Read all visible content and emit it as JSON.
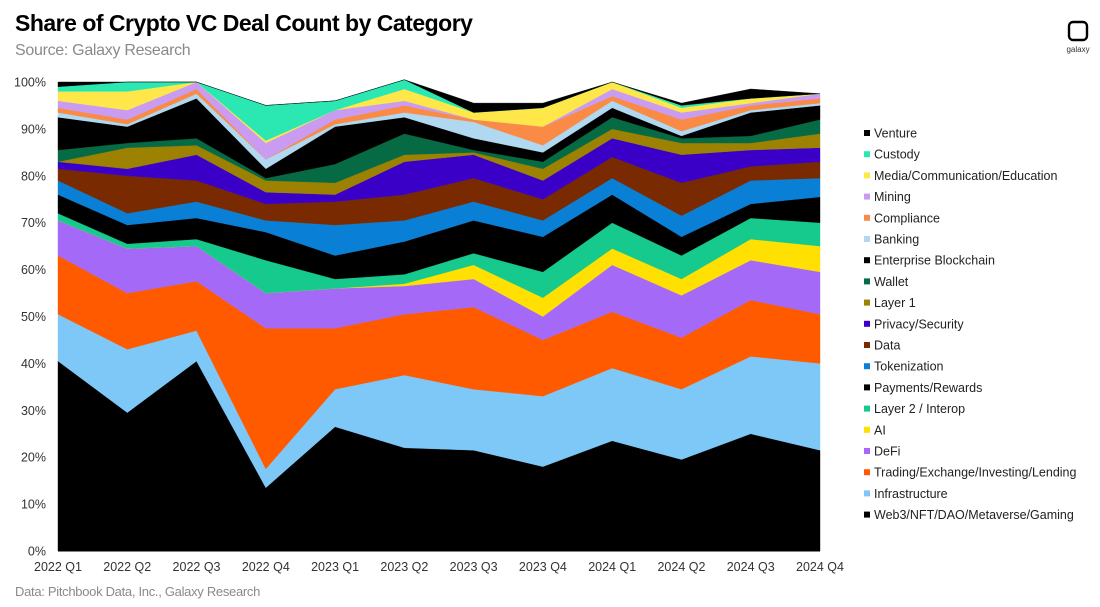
{
  "header": {
    "title": "Share of Crypto VC Deal Count by Category",
    "subtitle": "Source: Galaxy Research"
  },
  "footer": {
    "text": "Data: Pitchbook Data, Inc., Galaxy Research"
  },
  "logo": {
    "text": "galaxy",
    "icon": "galaxy-logo-icon"
  },
  "chart_data": {
    "type": "area",
    "stacked": true,
    "x": [
      "2022 Q1",
      "2022 Q2",
      "2022 Q3",
      "2022 Q4",
      "2023 Q1",
      "2023 Q2",
      "2023 Q3",
      "2023 Q4",
      "2024 Q1",
      "2024 Q2",
      "2024 Q3",
      "2024 Q4"
    ],
    "ylim": [
      0,
      100
    ],
    "yticks": [
      "0%",
      "10%",
      "20%",
      "30%",
      "40%",
      "50%",
      "60%",
      "70%",
      "80%",
      "90%",
      "100%"
    ],
    "legend_position": "right",
    "grid": false,
    "series": [
      {
        "name": "Web3/NFT/DAO/Metaverse/Gaming",
        "color": "#000000",
        "values": [
          40.5,
          29.5,
          40.5,
          13.5,
          26.5,
          22,
          21.5,
          18,
          23.5,
          19.5,
          25,
          21.5
        ]
      },
      {
        "name": "Infrastructure",
        "color": "#7ec8f8",
        "values": [
          10,
          13.5,
          6.5,
          4,
          8,
          15.5,
          13,
          15,
          15.5,
          15,
          16.5,
          18.5
        ]
      },
      {
        "name": "Trading/Exchange/Investing/Lending",
        "color": "#ff5a00",
        "values": [
          12.5,
          12,
          10.5,
          30,
          13,
          13,
          17.5,
          12,
          12,
          11,
          12,
          10.5
        ]
      },
      {
        "name": "DeFi",
        "color": "#a46af7",
        "values": [
          7.5,
          9.5,
          7.5,
          7.5,
          8.5,
          6,
          6,
          5,
          10,
          9,
          8.5,
          9
        ]
      },
      {
        "name": "AI",
        "color": "#ffe000",
        "values": [
          0,
          0,
          0,
          0,
          0,
          0.5,
          3,
          4,
          3.5,
          3.5,
          4.5,
          5.5
        ]
      },
      {
        "name": "Layer 2 / Interop",
        "color": "#16c98d",
        "values": [
          1.5,
          1,
          1.5,
          7,
          2,
          2,
          2.5,
          5.5,
          5.5,
          5,
          4.5,
          5
        ]
      },
      {
        "name": "Payments/Rewards",
        "color": "#000000",
        "values": [
          4,
          4,
          4.5,
          6,
          5,
          7,
          7,
          7.5,
          6,
          4,
          3,
          5.5
        ]
      },
      {
        "name": "Tokenization",
        "color": "#0a7fd6",
        "values": [
          3,
          2.5,
          3.5,
          2.5,
          6.5,
          4.5,
          4,
          3.5,
          3.5,
          4.5,
          5,
          4
        ]
      },
      {
        "name": "Data",
        "color": "#7a2a00",
        "values": [
          2.5,
          8,
          4.5,
          3.5,
          5,
          5.5,
          5,
          4.5,
          4.5,
          7,
          3,
          3.5
        ]
      },
      {
        "name": "Privacy/Security",
        "color": "#3a00c8",
        "values": [
          1.5,
          1.5,
          5.5,
          2.5,
          1.5,
          7,
          5,
          4,
          4,
          6,
          3.5,
          3
        ]
      },
      {
        "name": "Layer 1",
        "color": "#9c8200",
        "values": [
          0,
          4.5,
          2,
          2.5,
          2.5,
          1.5,
          0.5,
          2.5,
          2,
          2.5,
          1.5,
          3
        ]
      },
      {
        "name": "Wallet",
        "color": "#066b44",
        "values": [
          2.5,
          1,
          1.5,
          0.5,
          4,
          4.5,
          0.5,
          1.5,
          2.5,
          1,
          1.5,
          3
        ]
      },
      {
        "name": "Enterprise Blockchain",
        "color": "#000000",
        "values": [
          7,
          3.5,
          8.5,
          2,
          8,
          3.5,
          2.5,
          2,
          2,
          0.5,
          5,
          3
        ]
      },
      {
        "name": "Banking",
        "color": "#b0d8f0",
        "values": [
          1,
          0.5,
          1,
          2,
          0.5,
          1,
          3.5,
          1.5,
          1.5,
          1,
          0.5,
          0.5
        ]
      },
      {
        "name": "Compliance",
        "color": "#f98b46",
        "values": [
          1,
          1,
          1,
          0,
          1,
          1.5,
          0.5,
          4,
          1,
          2.5,
          1,
          1
        ]
      },
      {
        "name": "Mining",
        "color": "#c99cf2",
        "values": [
          1.5,
          2,
          1.5,
          3.5,
          2,
          1,
          0,
          0,
          1.5,
          1.5,
          0.5,
          1
        ]
      },
      {
        "name": "Media/Communication/Education",
        "color": "#ffe74a",
        "values": [
          2,
          4,
          0,
          0.5,
          0,
          2.5,
          1.5,
          4,
          1.5,
          1,
          1,
          0
        ]
      },
      {
        "name": "Custody",
        "color": "#2be8b3",
        "values": [
          1,
          2,
          0,
          7.5,
          2,
          2,
          0,
          0,
          0,
          0.5,
          0,
          0
        ]
      },
      {
        "name": "Venture",
        "color": "#000000",
        "values": [
          1,
          0,
          0,
          0,
          0,
          0,
          2,
          1,
          0,
          0.5,
          2,
          0
        ]
      }
    ]
  }
}
